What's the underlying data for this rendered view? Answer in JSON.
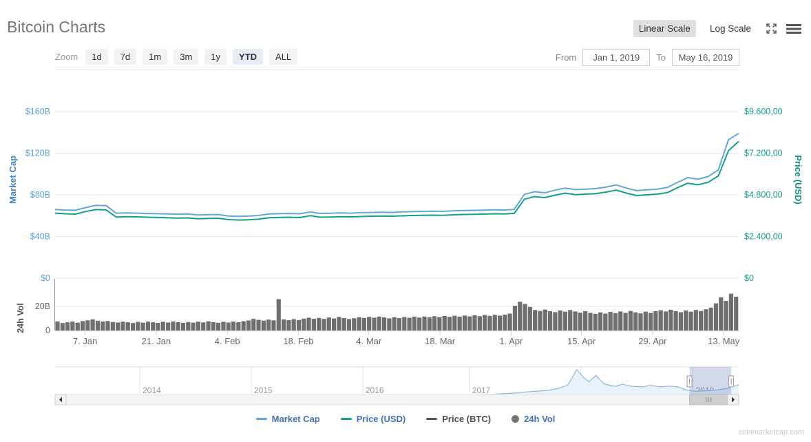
{
  "page": {
    "title": "Bitcoin Charts",
    "watermark": "coinmarketcap.com"
  },
  "toolbar": {
    "linear_scale": "Linear Scale",
    "log_scale": "Log Scale"
  },
  "zoom_controls": {
    "label": "Zoom",
    "buttons": [
      "1d",
      "7d",
      "1m",
      "3m",
      "1y",
      "YTD",
      "ALL"
    ],
    "active": "YTD"
  },
  "date_range": {
    "from_label": "From",
    "from_value": "Jan 1, 2019",
    "to_label": "To",
    "to_value": "May 16, 2019"
  },
  "colors": {
    "market_cap": "#64a5d9",
    "price_usd": "#12a086",
    "price_btc": "#555555",
    "volume": "#6f6f6f",
    "grid": "#e7e7e7",
    "axis_left_tick": "#5aa1d6",
    "axis_left_title": "#3f87c7",
    "axis_right_tick": "#12a086",
    "axis_right_title": "#0e9077",
    "axis_gray": "#666666",
    "nav_line": "#8dbce2",
    "nav_fill": "#e9f2fb"
  },
  "chart_data": {
    "type": "line",
    "title": "Bitcoin Charts",
    "x_range": [
      "Jan 1, 2019",
      "May 16, 2019"
    ],
    "y_left": {
      "title": "Market Cap",
      "ticks": [
        "$160B",
        "$120B",
        "$80B",
        "$40B",
        "$0"
      ],
      "max_b": 160
    },
    "y_right": {
      "title": "Price (USD)",
      "ticks": [
        "$9.600,00",
        "$7.200,00",
        "$4.800,00",
        "$2.400,00",
        "$0"
      ],
      "max": 9600
    },
    "x_ticks": [
      {
        "label": "7. Jan",
        "f": 0.044
      },
      {
        "label": "21. Jan",
        "f": 0.148
      },
      {
        "label": "4. Feb",
        "f": 0.252
      },
      {
        "label": "18. Feb",
        "f": 0.356
      },
      {
        "label": "4. Mar",
        "f": 0.459
      },
      {
        "label": "18. Mar",
        "f": 0.563
      },
      {
        "label": "1. Apr",
        "f": 0.667
      },
      {
        "label": "15. Apr",
        "f": 0.77
      },
      {
        "label": "29. Apr",
        "f": 0.874
      },
      {
        "label": "13. May",
        "f": 0.978
      }
    ],
    "series": [
      {
        "name": "Market Cap",
        "axis": "left",
        "unit": "B USD",
        "color": "#64a5d9",
        "values": [
          66.0,
          65.4,
          65.2,
          67.8,
          69.9,
          69.6,
          62.3,
          62.6,
          62.4,
          62.1,
          61.9,
          61.7,
          61.4,
          61.6,
          60.6,
          60.9,
          61.1,
          59.7,
          59.4,
          59.6,
          60.3,
          61.6,
          61.9,
          62.1,
          61.8,
          63.6,
          62.1,
          62.3,
          62.6,
          62.4,
          62.9,
          63.1,
          63.3,
          63.1,
          63.6,
          63.9,
          64.1,
          64.3,
          64.1,
          64.6,
          64.9,
          65.1,
          65.3,
          65.6,
          65.4,
          66.0,
          80.5,
          83.0,
          82.0,
          84.5,
          86.5,
          85.0,
          85.5,
          86.0,
          87.5,
          89.5,
          86.5,
          84.0,
          84.8,
          85.5,
          87.0,
          92.0,
          96.5,
          95.0,
          97.5,
          104.0,
          133.0,
          139.0
        ]
      },
      {
        "name": "Price (USD)",
        "axis": "right",
        "unit": "USD",
        "color": "#12a086",
        "values": [
          3745,
          3710,
          3690,
          3840,
          3950,
          3930,
          3520,
          3540,
          3530,
          3510,
          3500,
          3480,
          3460,
          3470,
          3420,
          3440,
          3450,
          3370,
          3350,
          3360,
          3400,
          3480,
          3500,
          3510,
          3490,
          3600,
          3510,
          3520,
          3540,
          3530,
          3550,
          3570,
          3580,
          3570,
          3590,
          3610,
          3620,
          3630,
          3620,
          3650,
          3670,
          3680,
          3690,
          3710,
          3700,
          3730,
          4550,
          4700,
          4640,
          4780,
          4900,
          4810,
          4840,
          4870,
          4960,
          5070,
          4900,
          4760,
          4800,
          4840,
          4930,
          5210,
          5470,
          5380,
          5520,
          5890,
          7350,
          7880
        ]
      },
      {
        "name": "Price (BTC)",
        "axis": "none",
        "color": "#555555",
        "values": []
      }
    ],
    "volume": {
      "name": "24h Vol",
      "color": "#6f6f6f",
      "axis_ticks": [
        "20B",
        "0"
      ],
      "tick_20b": 20,
      "values": [
        7.5,
        6.2,
        6.8,
        7.4,
        6.5,
        7.8,
        8.4,
        9.2,
        8.1,
        7.4,
        7.9,
        7.0,
        6.6,
        7.3,
        6.8,
        6.2,
        7.1,
        6.5,
        7.4,
        6.8,
        6.3,
        7.2,
        6.6,
        7.5,
        6.9,
        6.3,
        7.0,
        6.5,
        7.3,
        6.7,
        7.6,
        6.9,
        6.4,
        7.2,
        6.6,
        7.4,
        6.8,
        7.7,
        8.3,
        9.6,
        8.8,
        8.2,
        9.0,
        8.4,
        26.0,
        9.2,
        8.5,
        9.4,
        8.7,
        9.8,
        10.6,
        9.7,
        10.4,
        9.6,
        10.8,
        10.0,
        11.2,
        10.3,
        9.5,
        10.2,
        11.0,
        10.4,
        11.3,
        10.6,
        11.5,
        10.8,
        10.1,
        11.0,
        10.3,
        11.2,
        10.5,
        11.4,
        10.7,
        11.6,
        10.9,
        11.8,
        11.1,
        12.0,
        11.3,
        12.2,
        11.5,
        12.4,
        11.7,
        12.6,
        11.9,
        12.8,
        12.1,
        13.0,
        12.3,
        13.2,
        14.0,
        20.5,
        23.8,
        22.0,
        19.5,
        17.0,
        16.2,
        17.4,
        16.0,
        15.2,
        16.6,
        15.6,
        17.0,
        15.8,
        14.8,
        16.0,
        14.6,
        13.8,
        15.0,
        14.0,
        15.4,
        14.4,
        15.8,
        14.6,
        16.2,
        15.0,
        14.2,
        15.6,
        14.6,
        16.0,
        16.8,
        15.8,
        17.2,
        16.0,
        15.2,
        16.6,
        15.6,
        17.0,
        16.2,
        17.6,
        19.0,
        22.5,
        27.5,
        24.5,
        30.5,
        28.0
      ]
    },
    "navigator": {
      "value_max": 326,
      "year_ticks": [
        {
          "label": "2014",
          "f": 0.124
        },
        {
          "label": "2015",
          "f": 0.287
        },
        {
          "label": "2016",
          "f": 0.45
        },
        {
          "label": "2017",
          "f": 0.606
        },
        {
          "label": "2018",
          "f": 0.769
        },
        {
          "label": "2019",
          "f": 0.933
        }
      ],
      "selection": {
        "f0": 0.928,
        "f1": 0.989
      },
      "points": [
        [
          0.004,
          1
        ],
        [
          0.053,
          1.5
        ],
        [
          0.102,
          10
        ],
        [
          0.113,
          13.5
        ],
        [
          0.126,
          9
        ],
        [
          0.167,
          6
        ],
        [
          0.207,
          7.5
        ],
        [
          0.248,
          5
        ],
        [
          0.281,
          4
        ],
        [
          0.33,
          3.4
        ],
        [
          0.379,
          3.6
        ],
        [
          0.428,
          5.5
        ],
        [
          0.477,
          7
        ],
        [
          0.525,
          9.5
        ],
        [
          0.574,
          11.5
        ],
        [
          0.607,
          15
        ],
        [
          0.64,
          20
        ],
        [
          0.672,
          35
        ],
        [
          0.697,
          55
        ],
        [
          0.721,
          68
        ],
        [
          0.737,
          95
        ],
        [
          0.75,
          135
        ],
        [
          0.763,
          326
        ],
        [
          0.773,
          230
        ],
        [
          0.781,
          175
        ],
        [
          0.791,
          255
        ],
        [
          0.803,
          150
        ],
        [
          0.819,
          118
        ],
        [
          0.83,
          145
        ],
        [
          0.843,
          120
        ],
        [
          0.859,
          112
        ],
        [
          0.871,
          130
        ],
        [
          0.884,
          113
        ],
        [
          0.9,
          122
        ],
        [
          0.913,
          108
        ],
        [
          0.925,
          70
        ],
        [
          0.936,
          58
        ],
        [
          0.949,
          63
        ],
        [
          0.965,
          70
        ],
        [
          0.982,
          92
        ],
        [
          1.0,
          139
        ]
      ]
    }
  },
  "legend": {
    "items": [
      {
        "label": "Market Cap",
        "swatch": "line",
        "color": "#64a5d9",
        "text_color": "#4470b4"
      },
      {
        "label": "Price (USD)",
        "swatch": "line",
        "color": "#12a086",
        "text_color": "#4470b4"
      },
      {
        "label": "Price (BTC)",
        "swatch": "line",
        "color": "#555555",
        "text_color": "#4c4c4c"
      },
      {
        "label": "24h Vol",
        "swatch": "circle",
        "color": "#757575",
        "text_color": "#4470b4"
      }
    ]
  }
}
